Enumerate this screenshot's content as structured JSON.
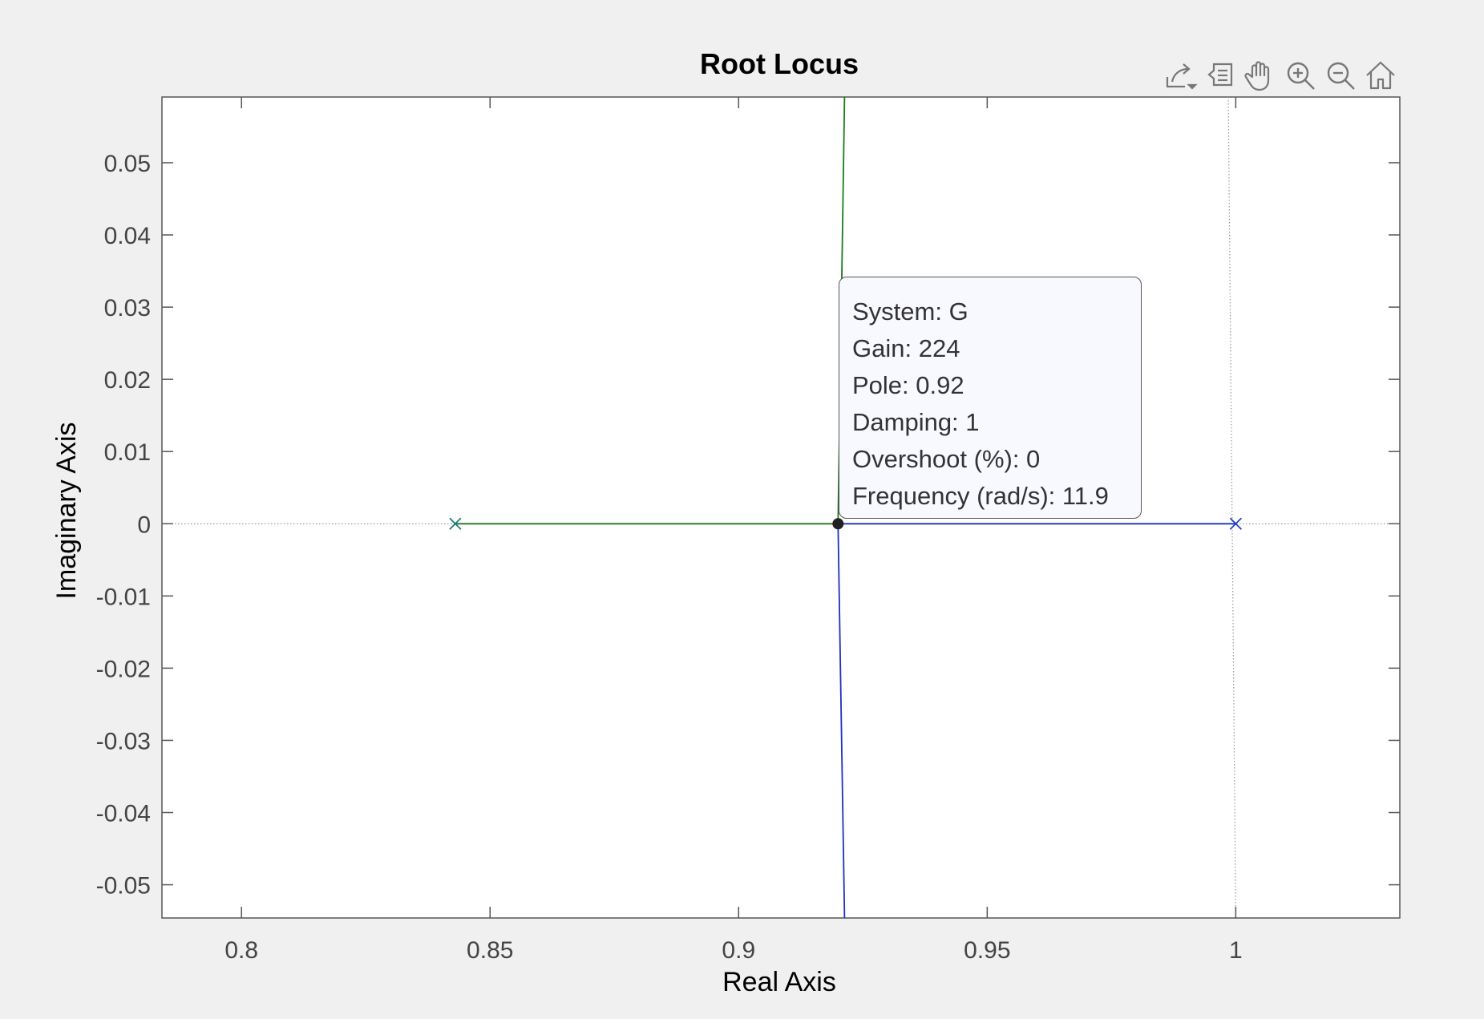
{
  "chart_data": {
    "type": "line",
    "title": "Root Locus",
    "xlabel": "Real Axis",
    "ylabel": "Imaginary Axis",
    "xlim": [
      0.784,
      1.033
    ],
    "ylim": [
      -0.0546,
      0.0591
    ],
    "xticks": [
      0.8,
      0.85,
      0.9,
      0.95,
      1
    ],
    "xtick_labels": [
      "0.8",
      "0.85",
      "0.9",
      "0.95",
      "1"
    ],
    "yticks": [
      0.05,
      0.04,
      0.03,
      0.02,
      0.01,
      0,
      -0.01,
      -0.02,
      -0.03,
      -0.04,
      -0.05
    ],
    "ytick_labels": [
      "0.05",
      "0.04",
      "0.03",
      "0.02",
      "0.01",
      "0",
      "-0.01",
      "-0.02",
      "-0.03",
      "-0.04",
      "-0.05"
    ],
    "grid": false,
    "poles": [
      {
        "x": 0.843,
        "y": 0,
        "color": "#1f7a7a"
      },
      {
        "x": 1.0,
        "y": 0,
        "color": "#1f3fbf"
      }
    ],
    "series": [
      {
        "color": "#1a7a1a",
        "x": [
          0.843,
          0.92
        ],
        "y": [
          0,
          0
        ]
      },
      {
        "color": "#1a7a1a",
        "x": [
          0.92,
          0.9213
        ],
        "y": [
          0,
          0.0591
        ]
      },
      {
        "color": "#1f2fbf",
        "x": [
          1.0,
          0.92
        ],
        "y": [
          0,
          0
        ]
      },
      {
        "color": "#1f2fbf",
        "x": [
          0.92,
          0.9213
        ],
        "y": [
          0,
          -0.0546
        ]
      }
    ],
    "reference_lines": {
      "unit_circle_x": [
        0.9985,
        1.0
      ],
      "unit_circle_y": [
        0.0591,
        -0.0546
      ]
    },
    "selected_point": {
      "x": 0.92,
      "y": 0
    }
  },
  "datatip": {
    "system": "System: G",
    "gain": "Gain: 224",
    "pole": "Pole: 0.92",
    "damping": "Damping: 1",
    "overshoot": "Overshoot (%): 0",
    "frequency": "Frequency (rad/s): 11.9"
  },
  "toolbar": {
    "icons": [
      "export-icon",
      "datatips-icon",
      "pan-icon",
      "zoom-in-icon",
      "zoom-out-icon",
      "home-icon"
    ]
  },
  "colors": {
    "background": "#f0f0f0",
    "axes": "#ffffff",
    "axis_line": "#555555",
    "branch_green": "#1a7a1a",
    "branch_blue": "#1f2fbf"
  }
}
